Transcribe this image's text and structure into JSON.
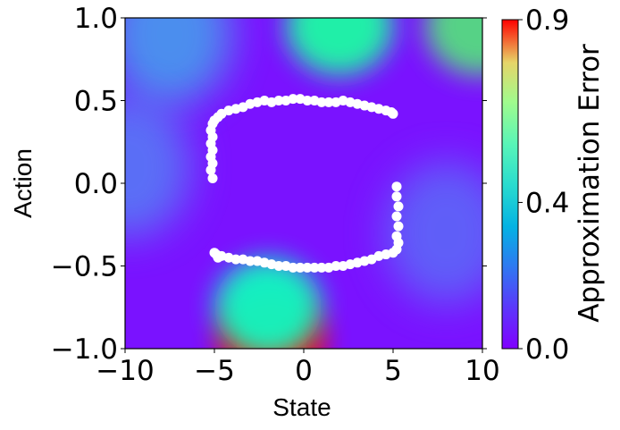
{
  "chart_data": {
    "type": "heatmap",
    "xlabel": "State",
    "ylabel": "Action",
    "xlim": [
      -10,
      10
    ],
    "ylim": [
      -1,
      1
    ],
    "x_ticks": [
      -10,
      -5,
      0,
      5,
      10
    ],
    "y_ticks": [
      -1.0,
      -0.5,
      0.0,
      0.5,
      1.0
    ],
    "x_tick_labels": [
      "−10",
      "−5",
      "0",
      "5",
      "10"
    ],
    "y_tick_labels": [
      "−1.0",
      "−0.5",
      "0.0",
      "0.5",
      "1.0"
    ],
    "colorbar": {
      "label": "Approximation Error",
      "range": [
        0.0,
        0.9
      ],
      "ticks": [
        0.0,
        0.4,
        0.9
      ],
      "tick_labels": [
        "0.0",
        "0.4",
        "0.9"
      ],
      "colormap": "rainbow"
    },
    "heatmap_hotspots": [
      {
        "x": -1.8,
        "y": -0.95,
        "value": 0.9
      },
      {
        "x": 2.0,
        "y": 0.95,
        "value": 0.5
      },
      {
        "x": 9.8,
        "y": 0.95,
        "value": 0.6
      },
      {
        "x": -2.0,
        "y": -0.75,
        "value": 0.4
      },
      {
        "x": -7.5,
        "y": 0.9,
        "value": 0.25
      },
      {
        "x": -9.8,
        "y": 0.1,
        "value": 0.18
      },
      {
        "x": 8.0,
        "y": -0.3,
        "value": 0.15
      }
    ],
    "scatter_points": {
      "color": "#ffffff",
      "points": [
        [
          -5.1,
          0.03
        ],
        [
          -5.2,
          0.08
        ],
        [
          -5.1,
          0.12
        ],
        [
          -5.2,
          0.16
        ],
        [
          -5.1,
          0.2
        ],
        [
          -5.2,
          0.24
        ],
        [
          -5.1,
          0.28
        ],
        [
          -5.2,
          0.32
        ],
        [
          -5.1,
          0.36
        ],
        [
          -5.0,
          0.38
        ],
        [
          -4.8,
          0.4
        ],
        [
          -4.6,
          0.42
        ],
        [
          -4.2,
          0.44
        ],
        [
          -3.8,
          0.45
        ],
        [
          -3.4,
          0.46
        ],
        [
          -3.0,
          0.48
        ],
        [
          -2.6,
          0.49
        ],
        [
          -2.2,
          0.5
        ],
        [
          -1.8,
          0.49
        ],
        [
          -1.4,
          0.5
        ],
        [
          -1.0,
          0.5
        ],
        [
          -0.6,
          0.51
        ],
        [
          -0.2,
          0.51
        ],
        [
          0.2,
          0.5
        ],
        [
          0.6,
          0.5
        ],
        [
          1.0,
          0.49
        ],
        [
          1.4,
          0.49
        ],
        [
          1.8,
          0.49
        ],
        [
          2.2,
          0.5
        ],
        [
          2.6,
          0.49
        ],
        [
          3.0,
          0.48
        ],
        [
          3.4,
          0.47
        ],
        [
          3.8,
          0.46
        ],
        [
          4.2,
          0.45
        ],
        [
          4.6,
          0.44
        ],
        [
          4.9,
          0.43
        ],
        [
          5.0,
          0.42
        ],
        [
          5.2,
          -0.02
        ],
        [
          5.2,
          -0.08
        ],
        [
          5.3,
          -0.14
        ],
        [
          5.2,
          -0.2
        ],
        [
          5.3,
          -0.26
        ],
        [
          5.2,
          -0.32
        ],
        [
          5.3,
          -0.36
        ],
        [
          5.2,
          -0.4
        ],
        [
          5.0,
          -0.42
        ],
        [
          4.6,
          -0.43
        ],
        [
          4.2,
          -0.44
        ],
        [
          3.8,
          -0.46
        ],
        [
          3.4,
          -0.47
        ],
        [
          3.0,
          -0.48
        ],
        [
          2.6,
          -0.49
        ],
        [
          2.2,
          -0.5
        ],
        [
          1.8,
          -0.5
        ],
        [
          1.4,
          -0.51
        ],
        [
          1.0,
          -0.51
        ],
        [
          0.6,
          -0.51
        ],
        [
          0.2,
          -0.51
        ],
        [
          -0.2,
          -0.51
        ],
        [
          -0.6,
          -0.51
        ],
        [
          -1.0,
          -0.5
        ],
        [
          -1.4,
          -0.5
        ],
        [
          -1.8,
          -0.49
        ],
        [
          -2.2,
          -0.48
        ],
        [
          -2.6,
          -0.47
        ],
        [
          -3.0,
          -0.47
        ],
        [
          -3.4,
          -0.46
        ],
        [
          -3.8,
          -0.46
        ],
        [
          -4.2,
          -0.45
        ],
        [
          -4.6,
          -0.44
        ],
        [
          -4.9,
          -0.43
        ],
        [
          -5.0,
          -0.42
        ],
        [
          -4.8,
          -0.45
        ]
      ]
    },
    "grid": false
  }
}
